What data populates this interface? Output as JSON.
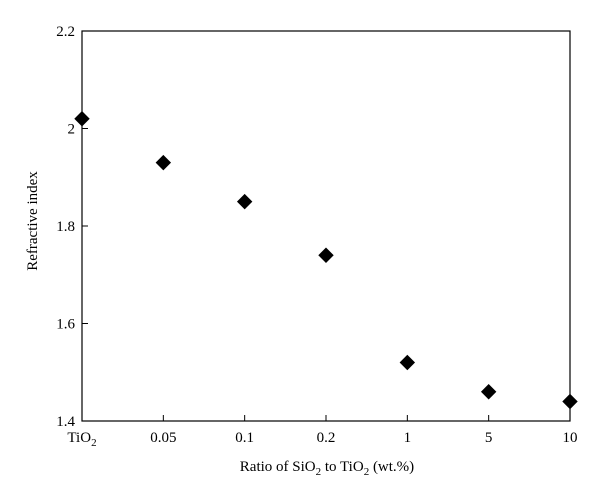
{
  "chart_data": {
    "type": "scatter",
    "categories": [
      {
        "main": "TiO",
        "sub": "2"
      },
      {
        "main": "0.05",
        "sub": ""
      },
      {
        "main": "0.1",
        "sub": ""
      },
      {
        "main": "0.2",
        "sub": ""
      },
      {
        "main": "1",
        "sub": ""
      },
      {
        "main": "5",
        "sub": ""
      },
      {
        "main": "10",
        "sub": ""
      }
    ],
    "series": [
      {
        "marker": "diamond",
        "color": "#000000",
        "values": [
          2.02,
          1.93,
          1.85,
          1.74,
          1.52,
          1.46,
          1.44
        ]
      }
    ],
    "ylim": [
      1.4,
      2.2
    ],
    "yticks": [
      "1.4",
      "1.6",
      "1.8",
      "2",
      "2.2"
    ],
    "ylabel": "Refractive index",
    "xlabel_parts": [
      "Ratio of SiO",
      "2",
      " to TiO",
      "2",
      " (wt.%)"
    ]
  }
}
